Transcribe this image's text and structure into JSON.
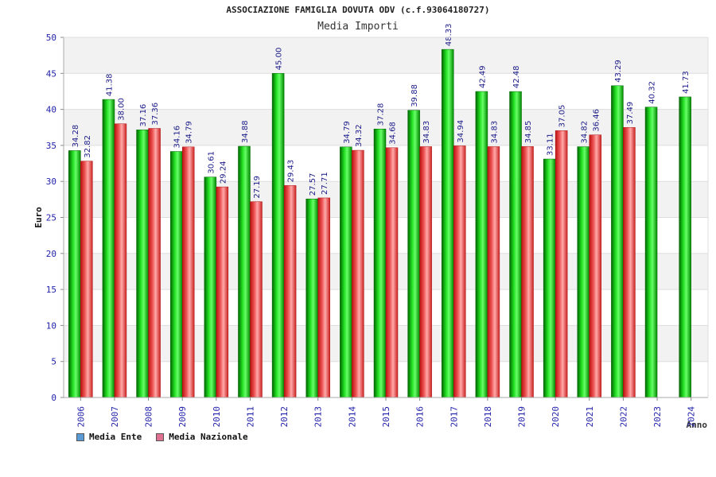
{
  "chart_data": {
    "type": "bar",
    "title": "ASSOCIAZIONE FAMIGLIA DOVUTA ODV (c.f.93064180727)",
    "subtitle": "Media Importi",
    "ylabel": "Euro",
    "xlabel": "Anno",
    "ylim": [
      0,
      50
    ],
    "yticks": [
      0,
      5,
      10,
      15,
      20,
      25,
      30,
      35,
      40,
      45,
      50
    ],
    "grid": true,
    "legend_position": "bottom-left",
    "categories": [
      "2006",
      "2007",
      "2008",
      "2009",
      "2010",
      "2011",
      "2012",
      "2013",
      "2014",
      "2015",
      "2016",
      "2017",
      "2018",
      "2019",
      "2020",
      "2021",
      "2022",
      "2023",
      "2024"
    ],
    "series": [
      {
        "name": "Media Ente",
        "color": "#00aa00",
        "legend_color": "#5b9bd5",
        "values": [
          34.28,
          41.38,
          37.16,
          34.16,
          30.61,
          34.88,
          45.0,
          27.57,
          34.79,
          37.28,
          39.88,
          48.33,
          42.49,
          42.48,
          33.11,
          34.82,
          43.29,
          40.32,
          41.73
        ],
        "labels": [
          "34.28",
          "41.38",
          "37.16",
          "34.16",
          "30.61",
          "34.88",
          "45.00",
          "27.57",
          "34.79",
          "37.28",
          "39.88",
          "48.33",
          "42.49",
          "42.48",
          "33.11",
          "34.82",
          "43.29",
          "40.32",
          "41.73"
        ]
      },
      {
        "name": "Media Nazionale",
        "color": "#e03030",
        "legend_color": "#e07090",
        "values": [
          32.82,
          38.0,
          37.36,
          34.79,
          29.24,
          27.19,
          29.43,
          27.71,
          34.32,
          34.68,
          34.83,
          34.94,
          34.83,
          34.85,
          37.05,
          36.46,
          37.49,
          null,
          null
        ],
        "labels": [
          "32.82",
          "38.00",
          "37.36",
          "34.79",
          "29.24",
          "27.19",
          "29.43",
          "27.71",
          "34.32",
          "34.68",
          "34.83",
          "34.94",
          "34.83",
          "34.85",
          "37.05",
          "36.46",
          "37.49",
          null,
          null
        ]
      }
    ]
  }
}
